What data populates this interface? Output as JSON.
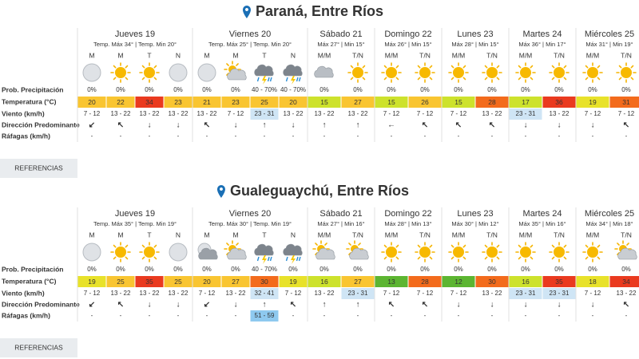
{
  "labels": {
    "precip": "Prob. Precipitación",
    "temp": "Temperatura (°C)",
    "wind": "Viento (km/h)",
    "dir": "Dirección Predominante",
    "gust": "Ráfagas (km/h)",
    "button": "REFERENCIAS"
  },
  "cities": [
    {
      "title": "Paraná, Entre Ríos",
      "days": [
        {
          "name": "Jueves 19",
          "sub": "Temp. Máx 34° | Temp. Min 20°",
          "periods": [
            {
              "label": "M",
              "icon": "moon",
              "precip": "0%",
              "temp": 20,
              "wind": "7 - 12",
              "dir": "↙",
              "gust": "-"
            },
            {
              "label": "M",
              "icon": "sun",
              "precip": "0%",
              "temp": 22,
              "wind": "13 - 22",
              "dir": "↖",
              "gust": "-"
            },
            {
              "label": "T",
              "icon": "sun",
              "precip": "0%",
              "temp": 34,
              "wind": "13 - 22",
              "dir": "↓",
              "gust": "-"
            },
            {
              "label": "N",
              "icon": "moon",
              "precip": "0%",
              "temp": 23,
              "wind": "13 - 22",
              "dir": "↓",
              "gust": "-"
            }
          ]
        },
        {
          "name": "Viernes 20",
          "sub": "Temp. Máx 25° | Temp. Min 20°",
          "periods": [
            {
              "label": "M",
              "icon": "moon",
              "precip": "0%",
              "temp": 21,
              "wind": "13 - 22",
              "dir": "↖",
              "gust": "-"
            },
            {
              "label": "M",
              "icon": "partly",
              "precip": "0%",
              "temp": 23,
              "wind": "7 - 12",
              "dir": "↓",
              "gust": "-"
            },
            {
              "label": "T",
              "icon": "storm",
              "precip": "40 - 70%",
              "temp": 25,
              "wind": "23 - 31",
              "wind_alert": true,
              "dir": "↑",
              "gust": "-"
            },
            {
              "label": "N",
              "icon": "storm",
              "precip": "40 - 70%",
              "temp": 20,
              "wind": "13 - 22",
              "dir": "↓",
              "gust": "-"
            }
          ]
        },
        {
          "name": "Sábado 21",
          "sub": "Máx 27° | Min 15°",
          "periods": [
            {
              "label": "M/M",
              "icon": "cloud",
              "precip": "0%",
              "temp": 15,
              "wind": "13 - 22",
              "dir": "↑",
              "gust": "-"
            },
            {
              "label": "T/N",
              "icon": "sun",
              "precip": "0%",
              "temp": 27,
              "wind": "13 - 22",
              "dir": "↑",
              "gust": "-"
            }
          ]
        },
        {
          "name": "Domingo 22",
          "sub": "Máx 26° | Min 15°",
          "periods": [
            {
              "label": "M/M",
              "icon": "sun",
              "precip": "0%",
              "temp": 15,
              "wind": "7 - 12",
              "dir": "←",
              "gust": "-"
            },
            {
              "label": "T/N",
              "icon": "sun",
              "precip": "0%",
              "temp": 26,
              "wind": "7 - 12",
              "dir": "↖",
              "gust": "-"
            }
          ]
        },
        {
          "name": "Lunes 23",
          "sub": "Máx 28° | Min 15°",
          "periods": [
            {
              "label": "M/M",
              "icon": "sun",
              "precip": "0%",
              "temp": 15,
              "wind": "7 - 12",
              "dir": "↖",
              "gust": "-"
            },
            {
              "label": "T/N",
              "icon": "sun",
              "precip": "0%",
              "temp": 28,
              "wind": "13 - 22",
              "dir": "↖",
              "gust": "-"
            }
          ]
        },
        {
          "name": "Martes 24",
          "sub": "Máx 36° | Min 17°",
          "periods": [
            {
              "label": "M/M",
              "icon": "sun",
              "precip": "0%",
              "temp": 17,
              "wind": "23 - 31",
              "wind_alert": true,
              "dir": "↓",
              "gust": "-"
            },
            {
              "label": "T/N",
              "icon": "sun",
              "precip": "0%",
              "temp": 36,
              "wind": "13 - 22",
              "dir": "↓",
              "gust": "-"
            }
          ]
        },
        {
          "name": "Miércoles 25",
          "sub": "Máx 31° | Min 19°",
          "periods": [
            {
              "label": "M/M",
              "icon": "sun",
              "precip": "0%",
              "temp": 19,
              "wind": "7 - 12",
              "dir": "↓",
              "gust": "-"
            },
            {
              "label": "T/N",
              "icon": "sun",
              "precip": "0%",
              "temp": 31,
              "wind": "7 - 12",
              "dir": "↖",
              "gust": "-"
            }
          ]
        }
      ]
    },
    {
      "title": "Gualeguaychú, Entre Ríos",
      "days": [
        {
          "name": "Jueves 19",
          "sub": "Temp. Máx 35° | Temp. Min 19°",
          "periods": [
            {
              "label": "M",
              "icon": "moon",
              "precip": "0%",
              "temp": 19,
              "wind": "7 - 12",
              "dir": "↙",
              "gust": "-"
            },
            {
              "label": "M",
              "icon": "sun",
              "precip": "0%",
              "temp": 25,
              "wind": "13 - 22",
              "dir": "↖",
              "gust": "-"
            },
            {
              "label": "T",
              "icon": "sun",
              "precip": "0%",
              "temp": 35,
              "wind": "13 - 22",
              "dir": "↓",
              "gust": "-"
            },
            {
              "label": "N",
              "icon": "moon",
              "precip": "0%",
              "temp": 25,
              "wind": "13 - 22",
              "dir": "↓",
              "gust": "-"
            }
          ]
        },
        {
          "name": "Viernes 20",
          "sub": "Temp. Máx 30° | Temp. Min 19°",
          "periods": [
            {
              "label": "M",
              "icon": "cloud-night",
              "precip": "0%",
              "temp": 20,
              "wind": "7 - 12",
              "dir": "↙",
              "gust": "-"
            },
            {
              "label": "M",
              "icon": "partly",
              "precip": "0%",
              "temp": 27,
              "wind": "13 - 22",
              "dir": "↓",
              "gust": "-"
            },
            {
              "label": "T",
              "icon": "storm",
              "precip": "40 - 70%",
              "temp": 30,
              "wind": "32 - 41",
              "wind_alert": true,
              "dir": "↑",
              "gust": "51 - 59",
              "gust_alert": true
            },
            {
              "label": "N",
              "icon": "storm",
              "precip": "0%",
              "temp": 19,
              "wind": "7 - 12",
              "dir": "↖",
              "gust": "-"
            }
          ]
        },
        {
          "name": "Sábado 21",
          "sub": "Máx 27° | Min 16°",
          "periods": [
            {
              "label": "M/M",
              "icon": "partly",
              "precip": "0%",
              "temp": 16,
              "wind": "13 - 22",
              "dir": "↑",
              "gust": "-"
            },
            {
              "label": "T/N",
              "icon": "partly",
              "precip": "0%",
              "temp": 27,
              "wind": "23 - 31",
              "wind_alert": true,
              "dir": "↑",
              "gust": "-"
            }
          ]
        },
        {
          "name": "Domingo 22",
          "sub": "Máx 28° | Min 13°",
          "periods": [
            {
              "label": "M/M",
              "icon": "sun",
              "precip": "0%",
              "temp": 13,
              "wind": "7 - 12",
              "dir": "↖",
              "gust": "-"
            },
            {
              "label": "T/N",
              "icon": "sun",
              "precip": "0%",
              "temp": 28,
              "wind": "7 - 12",
              "dir": "↖",
              "gust": "-"
            }
          ]
        },
        {
          "name": "Lunes 23",
          "sub": "Máx 30° | Min 12°",
          "periods": [
            {
              "label": "M/M",
              "icon": "sun",
              "precip": "0%",
              "temp": 12,
              "wind": "7 - 12",
              "dir": "↓",
              "gust": "-"
            },
            {
              "label": "T/N",
              "icon": "sun",
              "precip": "0%",
              "temp": 30,
              "wind": "13 - 22",
              "dir": "↓",
              "gust": "-"
            }
          ]
        },
        {
          "name": "Martes 24",
          "sub": "Máx 35° | Min 16°",
          "periods": [
            {
              "label": "M/M",
              "icon": "sun",
              "precip": "0%",
              "temp": 16,
              "wind": "23 - 31",
              "wind_alert": true,
              "dir": "↓",
              "gust": "-"
            },
            {
              "label": "T/N",
              "icon": "sun",
              "precip": "0%",
              "temp": 35,
              "wind": "23 - 31",
              "wind_alert": true,
              "dir": "↓",
              "gust": "-"
            }
          ]
        },
        {
          "name": "Miércoles 25",
          "sub": "Máx 34° | Min 18°",
          "periods": [
            {
              "label": "M/M",
              "icon": "sun",
              "precip": "0%",
              "temp": 18,
              "wind": "7 - 12",
              "dir": "↓",
              "gust": "-"
            },
            {
              "label": "T/N",
              "icon": "partly",
              "precip": "0%",
              "temp": 34,
              "wind": "13 - 22",
              "dir": "↖",
              "gust": "-"
            }
          ]
        }
      ]
    }
  ]
}
